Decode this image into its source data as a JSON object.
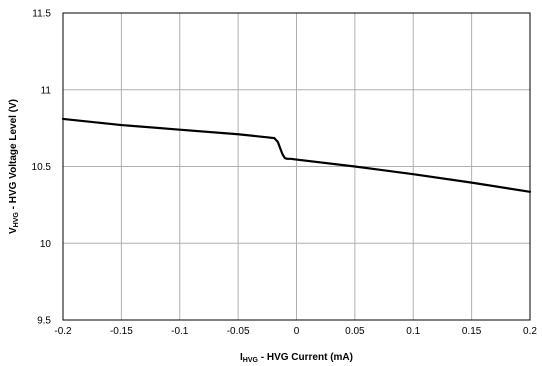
{
  "chart_data": {
    "type": "line",
    "title": "",
    "xlabel": {
      "main": "I",
      "sub": "HVG",
      "rest": " - HVG Current (mA)"
    },
    "ylabel": {
      "main": "V",
      "sub": "HVG",
      "rest": " - HVG Voltage Level (V)"
    },
    "xlim": [
      -0.2,
      0.2
    ],
    "ylim": [
      9.5,
      11.5
    ],
    "x_ticks": [
      -0.2,
      -0.15,
      -0.1,
      -0.05,
      0,
      0.05,
      0.1,
      0.15,
      0.2
    ],
    "x_tick_labels": [
      "-0.2",
      "-0.15",
      "-0.1",
      "-0.05",
      "0",
      "0.05",
      "0.1",
      "0.15",
      "0.2"
    ],
    "y_ticks": [
      9.5,
      10,
      10.5,
      11,
      11.5
    ],
    "y_tick_labels": [
      "9.5",
      "10",
      "10.5",
      "11",
      "11.5"
    ],
    "grid": true,
    "legend": "none",
    "line_color": "#000000",
    "grid_color": "#b0b0b0",
    "series": [
      {
        "x": [
          -0.2,
          -0.15,
          -0.1,
          -0.05,
          -0.025,
          -0.019,
          -0.016,
          -0.014,
          -0.012,
          -0.01,
          -0.008,
          -0.005,
          0,
          0.05,
          0.1,
          0.15,
          0.2
        ],
        "y": [
          10.81,
          10.77,
          10.74,
          10.71,
          10.69,
          10.685,
          10.66,
          10.62,
          10.58,
          10.555,
          10.55,
          10.55,
          10.545,
          10.5,
          10.45,
          10.395,
          10.335
        ]
      }
    ]
  }
}
